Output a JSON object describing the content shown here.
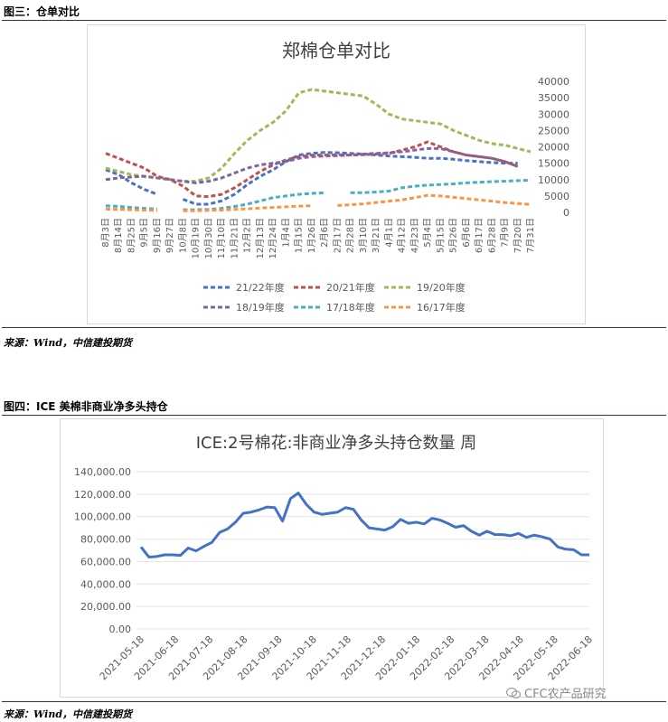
{
  "figure3": {
    "heading": "图三：仓单对比",
    "source": "来源：Wind，中信建投期货"
  },
  "figure4": {
    "heading": "图四：ICE 美棉非商业净多头持仓",
    "source": "来源：Wind，中信建投期货"
  },
  "watermark": "CFC农产品研究",
  "chart_data": [
    {
      "type": "line",
      "title": "郑棉仓单对比",
      "categories": [
        "8月3日",
        "8月14日",
        "8月25日",
        "9月5日",
        "9月16日",
        "9月27日",
        "10月8日",
        "10月19日",
        "10月30日",
        "11月10日",
        "11月21日",
        "12月2日",
        "12月13日",
        "12月24日",
        "1月4日",
        "1月15日",
        "1月26日",
        "2月6日",
        "2月17日",
        "2月28日",
        "3月10日",
        "3月21日",
        "4月1日",
        "4月12日",
        "4月23日",
        "5月4日",
        "5月15日",
        "5月26日",
        "6月6日",
        "6月17日",
        "6月28日",
        "7月9日",
        "7月20日",
        "7月31日"
      ],
      "ylim": [
        0,
        40000
      ],
      "yticks": [
        0,
        5000,
        10000,
        15000,
        20000,
        25000,
        30000,
        35000,
        40000
      ],
      "legend_position": "bottom",
      "series": [
        {
          "name": "21/22年度",
          "color": "#4472c4",
          "values": [
            13000,
            11500,
            9000,
            7000,
            5500,
            null,
            4000,
            2500,
            2500,
            3500,
            5500,
            8500,
            11000,
            13000,
            15500,
            17500,
            18000,
            18300,
            18200,
            18000,
            17800,
            17500,
            17200,
            17000,
            16800,
            16500,
            16500,
            16200,
            15800,
            15500,
            15200,
            15000,
            15000,
            null
          ]
        },
        {
          "name": "20/21年度",
          "color": "#c0504d",
          "values": [
            18000,
            16500,
            15000,
            13500,
            11000,
            10000,
            8000,
            5000,
            4800,
            5500,
            7500,
            10000,
            12500,
            14500,
            16000,
            17000,
            17500,
            17500,
            17600,
            17500,
            17600,
            17800,
            18000,
            19000,
            20000,
            21500,
            20000,
            18500,
            17500,
            17000,
            16500,
            15500,
            14000,
            null
          ]
        },
        {
          "name": "19/20年度",
          "color": "#9bbb59",
          "values": [
            13500,
            12500,
            11500,
            11000,
            10500,
            10000,
            9500,
            9500,
            10500,
            13500,
            18000,
            22000,
            25000,
            27500,
            31000,
            36500,
            37500,
            37000,
            36500,
            36000,
            35500,
            33000,
            30000,
            28500,
            28000,
            27500,
            27000,
            25000,
            23500,
            22000,
            21000,
            20500,
            19500,
            18500
          ]
        },
        {
          "name": "18/19年度",
          "color": "#8064a2",
          "values": [
            10000,
            10500,
            10800,
            11000,
            10500,
            10000,
            9500,
            9000,
            9500,
            10500,
            12000,
            13500,
            14500,
            15000,
            15500,
            16500,
            17000,
            17200,
            17300,
            17500,
            17800,
            18000,
            18200,
            18500,
            19000,
            19500,
            19500,
            18500,
            17500,
            17000,
            16500,
            15500,
            14000,
            null
          ]
        },
        {
          "name": "17/18年度",
          "color": "#4bacc6",
          "values": [
            2000,
            1800,
            1500,
            1200,
            1000,
            null,
            800,
            800,
            900,
            1200,
            1800,
            2500,
            3500,
            4500,
            5000,
            5500,
            5800,
            6000,
            null,
            6000,
            6000,
            6200,
            6500,
            7500,
            8000,
            8300,
            8500,
            8700,
            9000,
            9200,
            9400,
            9500,
            9700,
            9800
          ]
        },
        {
          "name": "16/17年度",
          "color": "#f79646",
          "values": [
            1000,
            900,
            800,
            700,
            600,
            null,
            500,
            500,
            600,
            700,
            900,
            1100,
            1300,
            1500,
            1700,
            1900,
            2000,
            null,
            2100,
            2300,
            2600,
            3000,
            3400,
            3800,
            4500,
            5200,
            5000,
            4600,
            4200,
            3800,
            3400,
            3000,
            2700,
            2400
          ]
        }
      ]
    },
    {
      "type": "line",
      "title": "ICE:2号棉花:非商业净多头持仓数量  周",
      "x_tick_labels": [
        "2021-05-18",
        "2021-06-18",
        "2021-07-18",
        "2021-08-18",
        "2021-09-18",
        "2021-10-18",
        "2021-11-18",
        "2021-12-18",
        "2022-01-18",
        "2022-02-18",
        "2022-03-18",
        "2022-04-18",
        "2022-05-18",
        "2022-06-18"
      ],
      "ylim": [
        0,
        140000
      ],
      "yticks": [
        0,
        20000,
        40000,
        60000,
        80000,
        100000,
        120000,
        140000
      ],
      "ytick_labels": [
        "0.00",
        "20,000.00",
        "40,000.00",
        "60,000.00",
        "80,000.00",
        "100,000.00",
        "120,000.00",
        "140,000.00"
      ],
      "series": [
        {
          "color": "#4472c4",
          "values": [
            73000,
            64000,
            64500,
            66000,
            66000,
            65500,
            72000,
            69500,
            73500,
            77000,
            86000,
            89000,
            95000,
            103000,
            104000,
            106000,
            108500,
            108000,
            96000,
            116000,
            121000,
            111000,
            104000,
            102000,
            103000,
            104000,
            108000,
            106500,
            97000,
            90000,
            89000,
            88000,
            91000,
            97500,
            94000,
            95000,
            93500,
            98500,
            97000,
            94000,
            90500,
            92000,
            87000,
            83500,
            87000,
            84000,
            84000,
            83000,
            85000,
            81500,
            83500,
            82000,
            80000,
            73000,
            71000,
            70500,
            66000,
            66000
          ]
        }
      ]
    }
  ]
}
